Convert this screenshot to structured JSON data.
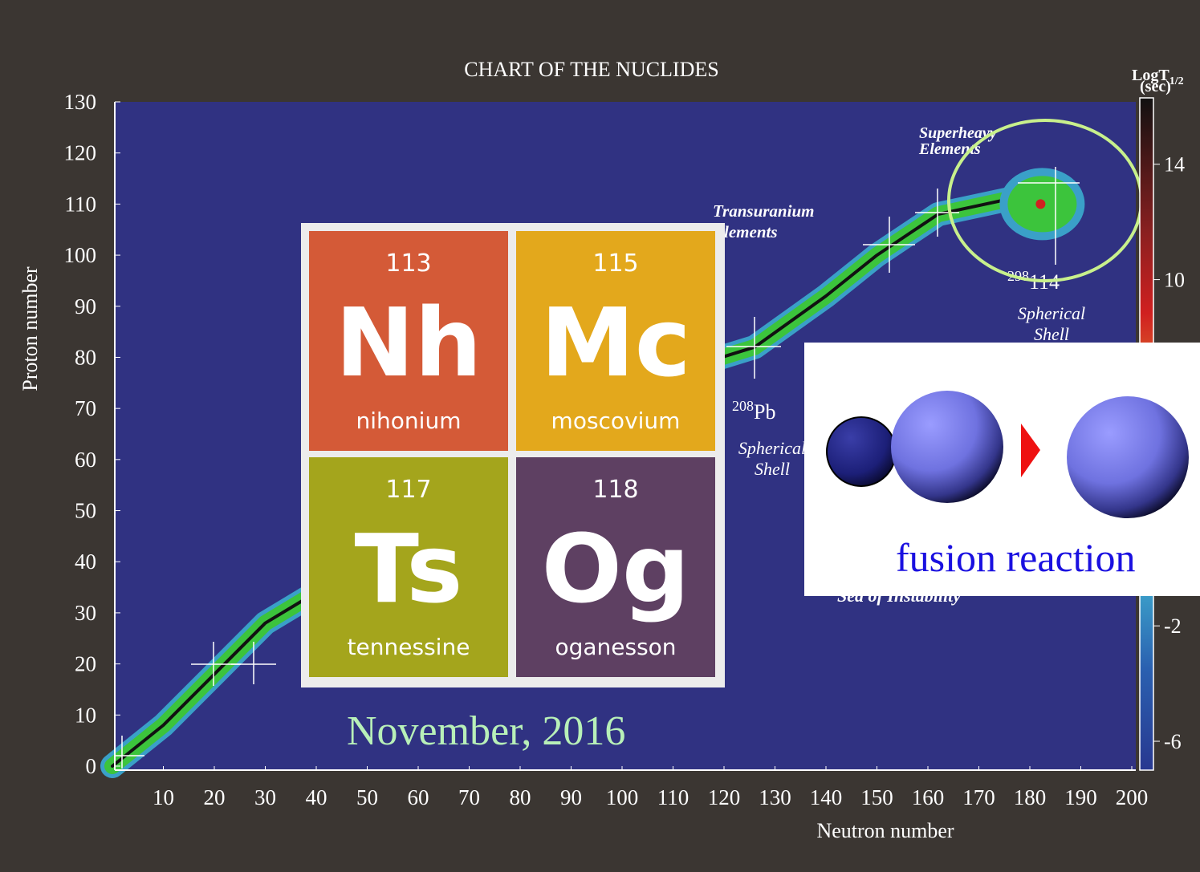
{
  "chart_data": {
    "type": "line",
    "title": "CHART OF THE NUCLIDES",
    "x_label": "Neutron number",
    "y_label": "Proton number",
    "xlim": [
      0,
      200
    ],
    "ylim": [
      0,
      130
    ],
    "xticks": [
      10,
      20,
      30,
      40,
      50,
      60,
      70,
      80,
      90,
      100,
      110,
      120,
      130,
      140,
      150,
      160,
      170,
      180,
      190,
      200
    ],
    "yticks": [
      0,
      10,
      20,
      30,
      40,
      50,
      60,
      70,
      80,
      90,
      100,
      110,
      120,
      130
    ],
    "x": [
      0,
      10,
      20,
      30,
      40,
      60,
      80,
      100,
      126,
      140,
      150,
      162,
      176,
      184
    ],
    "series": [
      {
        "color": "#3cc43c",
        "values": [
          0,
          8,
          18,
          28,
          34,
          48,
          60,
          74,
          82,
          92,
          100,
          108,
          111,
          110
        ]
      }
    ],
    "colorbar": {
      "label": "LogT",
      "label_sub": "1/2",
      "unit": "(sec)",
      "lim": [
        -7,
        16.3
      ],
      "ticks": [
        14,
        10,
        -2,
        -6
      ]
    },
    "annotations": [
      {
        "lines": [
          "Superheavy",
          "Elements"
        ]
      },
      {
        "lines": [
          "Transuranium",
          "Elements"
        ]
      },
      {
        "sup": "208",
        "text": "Pb"
      },
      {
        "lines": [
          "Spherical",
          "Shell"
        ]
      },
      {
        "sup": "298",
        "text": "114"
      },
      {
        "lines": [
          "Spherical",
          "Shell"
        ]
      },
      {
        "lines": [
          "Sea of Instability"
        ]
      }
    ]
  },
  "elements": [
    {
      "number": "113",
      "symbol": "Nh",
      "name": "nihonium",
      "color": "#d45a37"
    },
    {
      "number": "115",
      "symbol": "Mc",
      "name": "moscovium",
      "color": "#e3a81c"
    },
    {
      "number": "117",
      "symbol": "Ts",
      "name": "tennessine",
      "color": "#a4a51c"
    },
    {
      "number": "118",
      "symbol": "Og",
      "name": "oganesson",
      "color": "#5e4062"
    }
  ],
  "date": "November, 2016",
  "reaction": "fusion reaction"
}
